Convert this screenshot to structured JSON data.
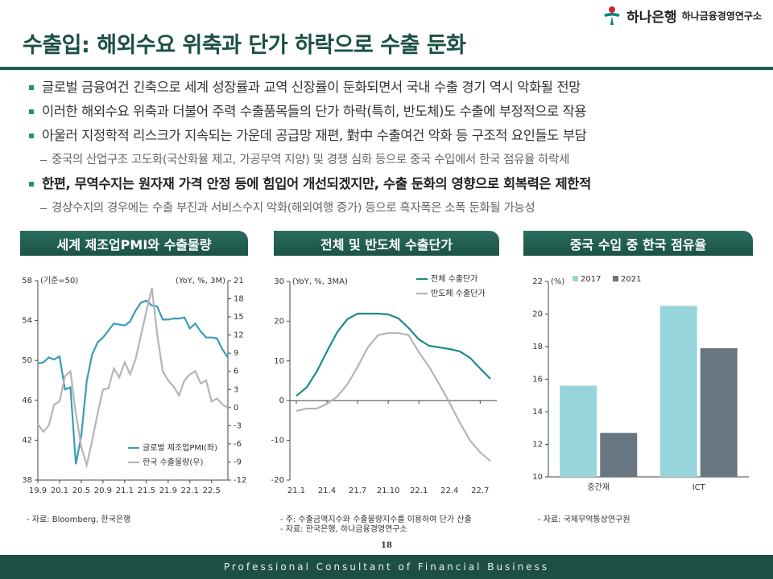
{
  "header": {
    "logo": "하나은행",
    "org": "하나금융경영연구소",
    "title": "수출입: 해외수요 위축과 단가 하락으로 수출 둔화"
  },
  "bullets": [
    {
      "text": "글로벌 금융여건 긴축으로 세계 성장률과 교역 신장률이 둔화되면서 국내 수출 경기 역시 악화될 전망",
      "sub": []
    },
    {
      "text": "이러한 해외수요 위축과 더불어 주력 수출품목들의 단가 하락(특히, 반도체)도 수출에 부정적으로 작용",
      "sub": []
    },
    {
      "text": "아울러 지정학적 리스크가 지속되는 가운데 공급망 재편, 對中 수출여건 악화 등 구조적 요인들도 부담",
      "sub": [
        "중국의 산업구조 고도화(국산화율 제고, 가공무역 지양) 및 경쟁 심화 등으로 중국 수입에서 한국 점유율 하락세"
      ]
    },
    {
      "text": "한편, 무역수지는 원자재 가격 안정 등에 힘입어 개선되겠지만, 수출 둔화의 영향으로 회복력은 제한적",
      "sub": [
        "경상수지의 경우에는 수출 부진과 서비스수지 악화(해외여행 증가) 등으로 흑자폭은 소폭 둔화될 가능성"
      ]
    }
  ],
  "chart_data": [
    {
      "type": "line",
      "title": "세계 제조업PMI와 수출물량",
      "ylabel": "(기준=50)",
      "y2label": "(YoY, %, 3M)",
      "categories": [
        "19.9",
        null,
        null,
        null,
        "20.1",
        null,
        null,
        null,
        "20.5",
        null,
        null,
        null,
        "20.9",
        null,
        null,
        null,
        "21.1",
        null,
        null,
        null,
        "21.5",
        null,
        null,
        null,
        "21.9",
        null,
        null,
        null,
        "22.1",
        null,
        null,
        null,
        "22.5",
        null,
        null,
        null
      ],
      "series": [
        {
          "name": "글로벌 제조업PMI(좌)",
          "color": "#3a9bbb",
          "values": [
            49.7,
            49.8,
            50.3,
            50.1,
            50.4,
            47.1,
            47.3,
            39.6,
            42.4,
            47.9,
            50.6,
            51.8,
            52.3,
            53.0,
            53.7,
            53.6,
            53.5,
            53.9,
            55.0,
            55.8,
            56.0,
            55.5,
            55.4,
            54.1,
            54.1,
            54.2,
            54.2,
            54.3,
            53.2,
            53.7,
            52.9,
            52.3,
            52.3,
            52.2,
            51.1,
            50.3
          ]
        },
        {
          "name": "한국 수출물량(우)",
          "color": "#b5b5b5",
          "axis": "y2",
          "values": [
            -2.7,
            -4,
            -3,
            0.5,
            1,
            5.2,
            6,
            -1,
            -6.5,
            -9.5,
            -5.5,
            -1,
            3,
            3.2,
            6.5,
            5,
            7.5,
            5.5,
            8,
            12,
            16,
            19.8,
            12,
            6,
            4.5,
            3.5,
            2,
            4.5,
            5.5,
            6,
            4,
            4.5,
            1,
            1.5,
            0.5,
            0
          ]
        }
      ],
      "ylim": [
        38,
        58
      ],
      "yticks": [
        38,
        42,
        46,
        50,
        54,
        58
      ],
      "y2lim": [
        -12,
        21
      ],
      "y2ticks": [
        -12,
        -9,
        -6,
        -3,
        0,
        3,
        6,
        9,
        12,
        15,
        18,
        21
      ],
      "legend": "lower right",
      "notes": [
        "- 자료: Bloomberg, 한국은행"
      ]
    },
    {
      "type": "line",
      "title": "전체 및 반도체 수출단가",
      "ylabel": "(YoY, %, 3MA)",
      "categories": [
        "21.1",
        null,
        null,
        "21.4",
        null,
        null,
        "21.7",
        null,
        null,
        "21.10",
        null,
        null,
        "22.1",
        null,
        null,
        "22.4",
        null,
        null,
        "22.7",
        null
      ],
      "series": [
        {
          "name": "전체 수출단가",
          "color": "#1f8a8a",
          "values": [
            1.2,
            3.3,
            7.3,
            12.4,
            17.2,
            20.5,
            21.9,
            21.9,
            21.9,
            21.7,
            20.7,
            18.3,
            15.4,
            13.8,
            13.4,
            13,
            12.4,
            10.8,
            8.1,
            5.5
          ]
        },
        {
          "name": "반도체 수출단가",
          "color": "#b5b5b5",
          "values": [
            -2.6,
            -2,
            -2,
            -0.8,
            1,
            4.1,
            8.5,
            13.4,
            16.5,
            17,
            17,
            16.5,
            12.2,
            8.5,
            4.1,
            -0.5,
            -5.5,
            -10,
            -13,
            -15.2
          ]
        }
      ],
      "ylim": [
        -20,
        30
      ],
      "yticks": [
        -20,
        -10,
        0,
        10,
        20,
        30
      ],
      "legend": "upper right",
      "notes": [
        "- 주: 수출금액지수와 수출물량지수를 이용하여 단가 산출",
        "- 자료: 한국은행, 하나금융경영연구소"
      ]
    },
    {
      "type": "bar",
      "title": "중국 수입 중 한국 점유율",
      "ylabel": "(%)",
      "categories": [
        "중간재",
        "ICT"
      ],
      "series": [
        {
          "name": "2017",
          "color": "#97d5dd",
          "values": [
            15.6,
            20.5
          ]
        },
        {
          "name": "2021",
          "color": "#677680",
          "values": [
            12.7,
            17.9
          ]
        }
      ],
      "ylim": [
        10,
        22
      ],
      "yticks": [
        10,
        12,
        14,
        16,
        18,
        20,
        22
      ],
      "legend": "upper left",
      "notes": [
        "- 자료: 국제무역통상연구원"
      ]
    }
  ],
  "page_number": 18,
  "footer": "Professional Consultant of Financial Business"
}
